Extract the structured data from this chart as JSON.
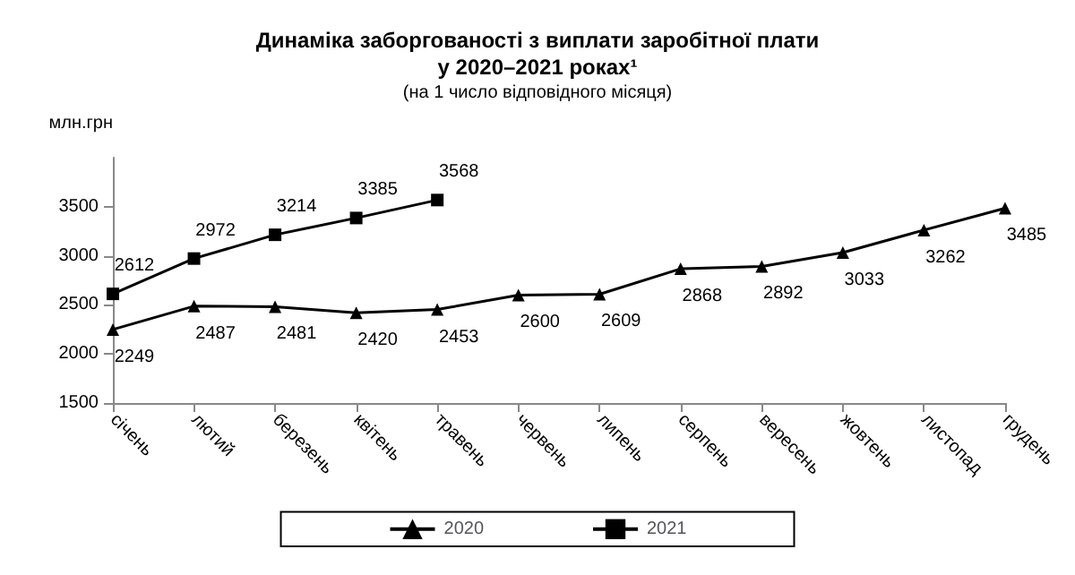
{
  "chart_data": {
    "type": "line",
    "title": "Динаміка заборгованості з виплати заробітної плати\nу 2020–2021 роках¹",
    "subtitle": "(на 1 число відповідного місяця)",
    "ylabel": "млн.грн",
    "categories": [
      "січень",
      "лютий",
      "березень",
      "квітень",
      "травень",
      "червень",
      "липень",
      "серпень",
      "вересень",
      "жовтень",
      "листопад",
      "грудень"
    ],
    "series": [
      {
        "name": "2020",
        "color": "#000000",
        "marker": "triangle",
        "values": [
          2249,
          2487,
          2481,
          2420,
          2453,
          2600,
          2609,
          2868,
          2892,
          3033,
          3262,
          3485
        ]
      },
      {
        "name": "2021",
        "color": "#000000",
        "marker": "square",
        "values": [
          2612,
          2972,
          3214,
          3385,
          3568,
          null,
          null,
          null,
          null,
          null,
          null,
          null
        ]
      }
    ],
    "ylim": [
      1500,
      4000
    ],
    "yticks": [
      1500,
      2000,
      2500,
      3000,
      3500
    ],
    "data_labels": true,
    "legend": "bottom",
    "grid": false
  }
}
